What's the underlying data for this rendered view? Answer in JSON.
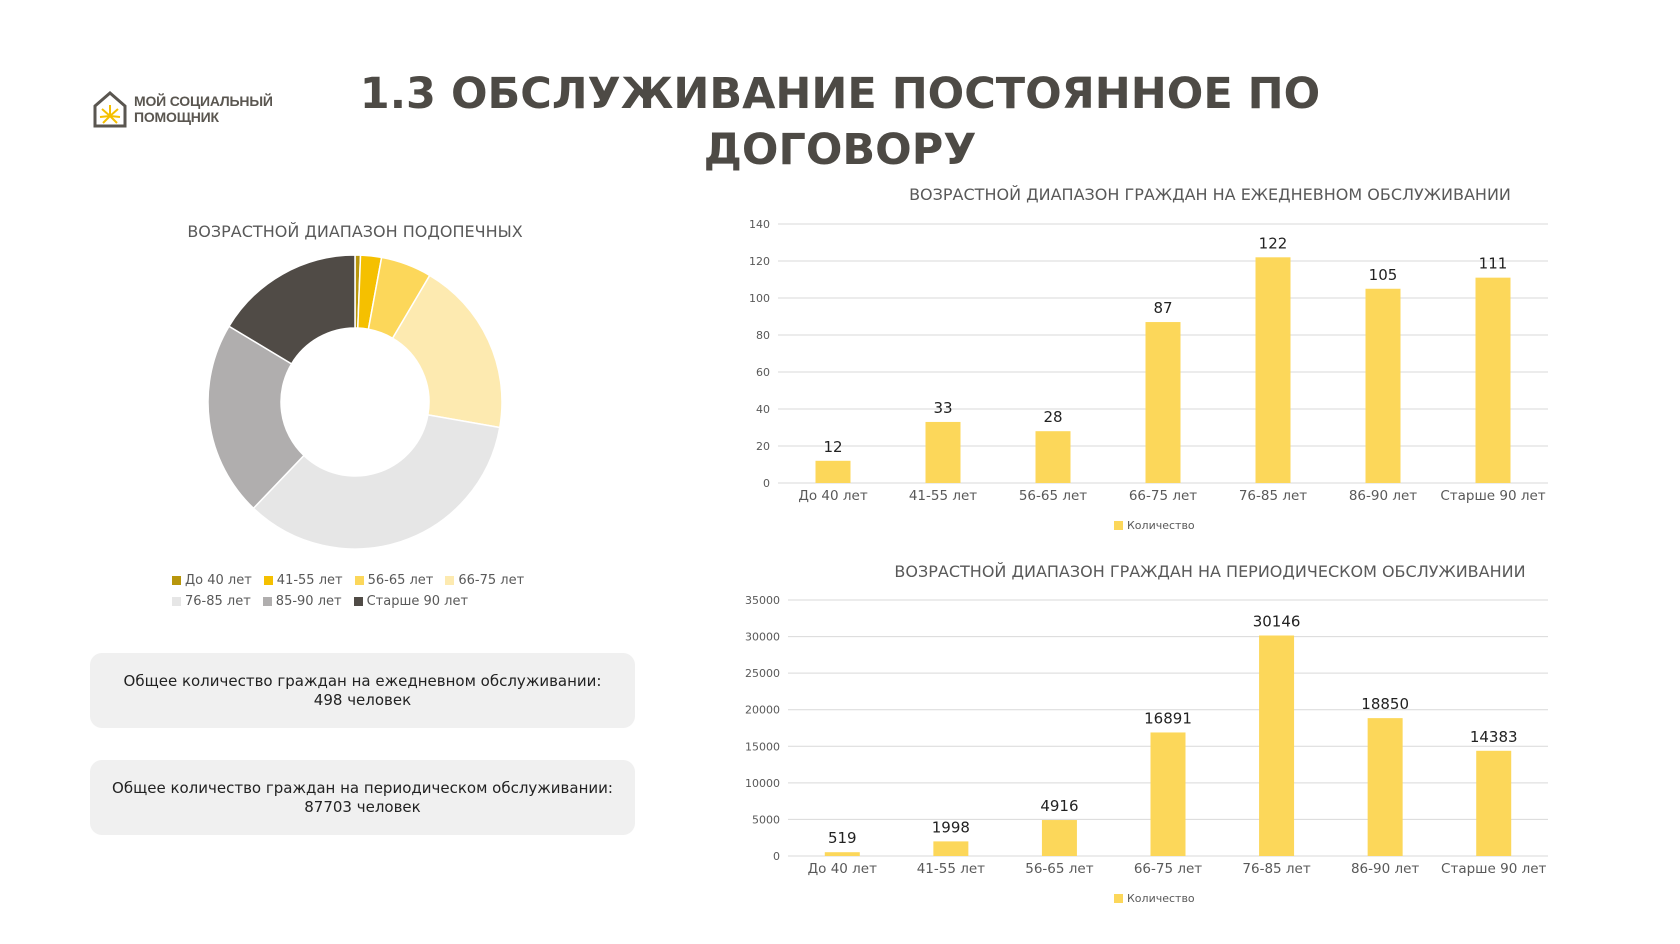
{
  "logo": {
    "line1": "МОЙ СОЦИАЛЬНЫЙ",
    "line2": "ПОМОЩНИК"
  },
  "page_title": "1.3 ОБСЛУЖИВАНИЕ ПОСТОЯННОЕ ПО ДОГОВОРУ",
  "summary": {
    "daily_label": "Общее количество граждан на ежедневном обслуживании:",
    "daily_value": "498 человек",
    "periodic_label": "Общее количество граждан на периодическом обслуживании:",
    "periodic_value": "87703 человек"
  },
  "chart_data": [
    {
      "type": "pie",
      "title": "ВОЗРАСТНОЙ ДИАПАЗОН ПОДОПЕЧНЫХ",
      "categories": [
        "До 40 лет",
        "41-55 лет",
        "56-65 лет",
        "66-75 лет",
        "76-85 лет",
        "85-90 лет",
        "Старше 90 лет"
      ],
      "values": [
        0.6,
        2.3,
        5.6,
        19.3,
        34.4,
        21.5,
        16.4
      ],
      "colors": [
        "#b8960c",
        "#f5c000",
        "#fcd75a",
        "#fdeab0",
        "#e6e6e6",
        "#b0aeae",
        "#504b46"
      ],
      "legend": "bottom"
    },
    {
      "type": "bar",
      "title": "ВОЗРАСТНОЙ ДИАПАЗОН ГРАЖДАН НА ЕЖЕДНЕВНОМ ОБСЛУЖИВАНИИ",
      "categories": [
        "До 40 лет",
        "41-55 лет",
        "56-65 лет",
        "66-75 лет",
        "76-85 лет",
        "86-90 лет",
        "Старше 90 лет"
      ],
      "series": [
        {
          "name": "Количество",
          "values": [
            12,
            33,
            28,
            87,
            122,
            105,
            111
          ]
        }
      ],
      "ylim": [
        0,
        140
      ],
      "yticks": [
        0,
        20,
        40,
        60,
        80,
        100,
        120,
        140
      ],
      "color": "#fcd75a",
      "grid": true,
      "legend": "bottom"
    },
    {
      "type": "bar",
      "title": "ВОЗРАСТНОЙ ДИАПАЗОН ГРАЖДАН НА ПЕРИОДИЧЕСКОМ ОБСЛУЖИВАНИИ",
      "categories": [
        "До 40 лет",
        "41-55 лет",
        "56-65 лет",
        "66-75 лет",
        "76-85 лет",
        "86-90 лет",
        "Старше 90 лет"
      ],
      "series": [
        {
          "name": "Количество",
          "values": [
            519,
            1998,
            4916,
            16891,
            30146,
            18850,
            14383
          ]
        }
      ],
      "ylim": [
        0,
        35000
      ],
      "yticks": [
        0,
        5000,
        10000,
        15000,
        20000,
        25000,
        30000,
        35000
      ],
      "color": "#fcd75a",
      "grid": true,
      "legend": "bottom"
    }
  ]
}
